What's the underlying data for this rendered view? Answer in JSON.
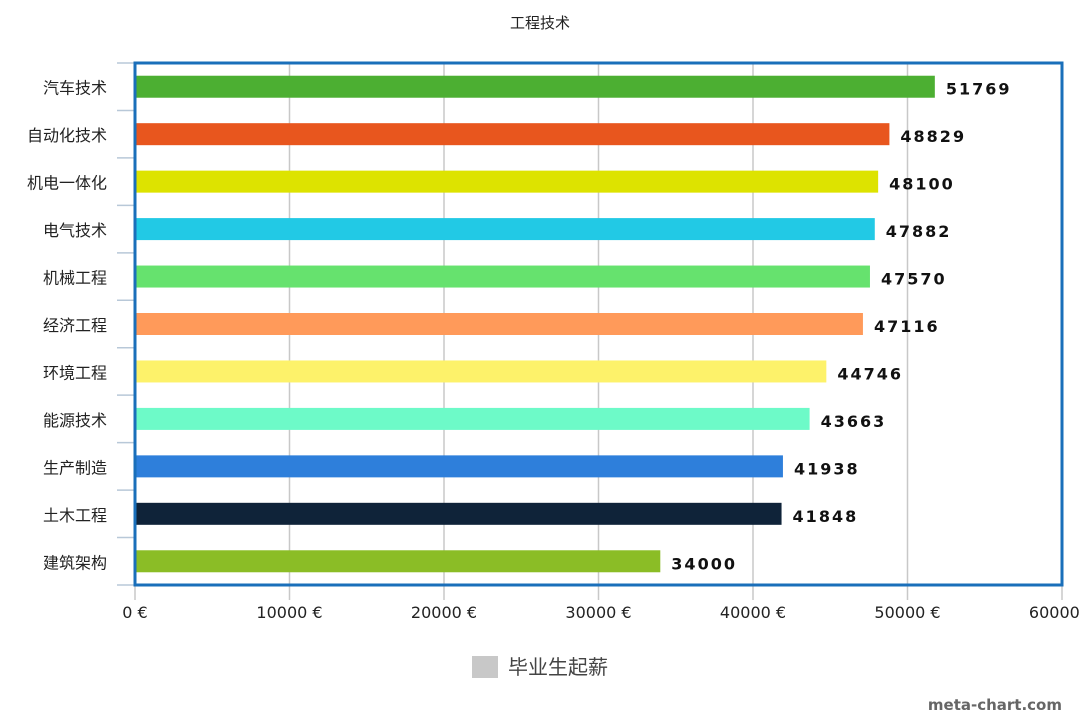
{
  "chart_data": {
    "type": "bar",
    "orientation": "horizontal",
    "title": "工程技术",
    "categories": [
      "汽车技术",
      "自动化技术",
      "机电一体化",
      "电气技术",
      "机械工程",
      "经济工程",
      "环境工程",
      "能源技术",
      "生产制造",
      "土木工程",
      "建筑架构"
    ],
    "series": [
      {
        "name": "毕业生起薪",
        "values": [
          51769,
          48829,
          48100,
          47882,
          47570,
          47116,
          44746,
          43663,
          41938,
          41848,
          34000
        ]
      }
    ],
    "colors": [
      "#4caf32",
      "#e8561e",
      "#dde300",
      "#22c9e5",
      "#66e26e",
      "#ff9a5a",
      "#fdf26a",
      "#6dfac8",
      "#2e7fdb",
      "#0f2339",
      "#8bbd26"
    ],
    "xlim": [
      0,
      60000
    ],
    "xticks": [
      "0 €",
      "10000 €",
      "20000 €",
      "30000 €",
      "40000 €",
      "50000 €",
      "60000 €"
    ],
    "grid": true,
    "legend_position": "bottom",
    "legend_color": "#c8c8c8",
    "border_color": "#1a6fba"
  },
  "credit": "meta-chart.com"
}
